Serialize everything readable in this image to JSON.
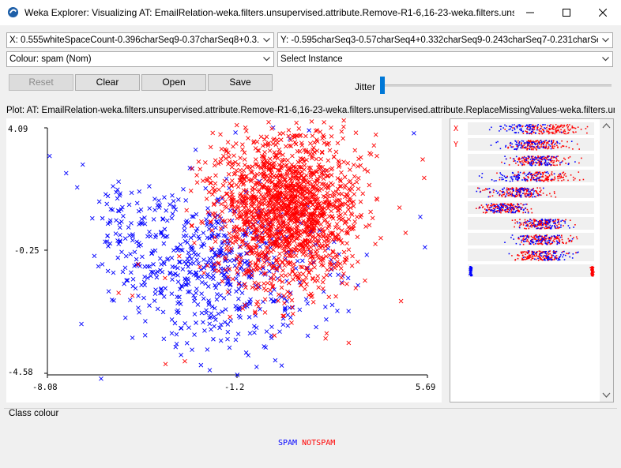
{
  "window": {
    "title": "Weka Explorer: Visualizing AT: EmailRelation-weka.filters.unsupervised.attribute.Remove-R1-6,16-23-weka.filters.uns..."
  },
  "controls": {
    "x_select": "X: 0.555whiteSpaceCount-0.396charSeq9-0.37charSeq8+0.3...",
    "y_select": "Y: -0.595charSeq3-0.57charSeq4+0.332charSeq9-0.243charSeq7-0.231charSe...",
    "colour_select": "Colour: spam (Nom)",
    "instance_select": "Select Instance",
    "reset_label": "Reset",
    "clear_label": "Clear",
    "open_label": "Open",
    "save_label": "Save",
    "jitter_label": "Jitter",
    "jitter_value": 0
  },
  "plot": {
    "label": "Plot: AT: EmailRelation-weka.filters.unsupervised.attribute.Remove-R1-6,16-23-weka.filters.unsupervised.attribute.ReplaceMissingValues-weka.filters.unsu...",
    "y_ticks": [
      "4.09",
      "-0.25",
      "-4.58"
    ],
    "x_ticks": [
      "-8.08",
      "-1.2",
      "5.69"
    ]
  },
  "chart_data": {
    "type": "scatter",
    "xlim": [
      -8.08,
      5.69
    ],
    "ylim": [
      -4.58,
      4.09
    ],
    "marker": "x",
    "series": [
      {
        "name": "SPAM",
        "color": "#0000ff",
        "center": [
          -1.6,
          -0.9
        ],
        "spread": [
          2.0,
          1.5
        ],
        "n": 650,
        "outliers": [
          [
            -8.0,
            3.1
          ],
          [
            -7.4,
            2.5
          ],
          [
            -6.8,
            2.8
          ],
          [
            -6.2,
            1.5
          ],
          [
            -7.0,
            2.0
          ],
          [
            -5.5,
            2.2
          ],
          [
            -1.2,
            -4.58
          ],
          [
            -0.5,
            -4.3
          ],
          [
            1.4,
            4.0
          ],
          [
            5.6,
            -0.1
          ],
          [
            5.2,
            3.9
          ],
          [
            0.1,
            4.1
          ]
        ]
      },
      {
        "name": "NOTSPAM",
        "color": "#ff0000",
        "center": [
          0.6,
          1.2
        ],
        "spread": [
          1.3,
          1.4
        ],
        "n": 1700,
        "outliers": [
          [
            -5.5,
            -1.7
          ],
          [
            -5.0,
            -1.8
          ],
          [
            -4.8,
            -0.7
          ],
          [
            3.6,
            3.2
          ],
          [
            3.2,
            3.0
          ],
          [
            -2.6,
            2.9
          ],
          [
            -2.3,
            2.3
          ],
          [
            -3.8,
            -4.2
          ],
          [
            -3.1,
            -4.1
          ],
          [
            2.0,
            -3.3
          ]
        ]
      }
    ]
  },
  "attribute_panel": {
    "x_marker": "X",
    "y_marker": "Y",
    "rows": [
      {
        "spam_center": 0.45,
        "notspam_center": 0.65,
        "width": 0.28
      },
      {
        "spam_center": 0.5,
        "notspam_center": 0.56,
        "width": 0.26
      },
      {
        "spam_center": 0.55,
        "notspam_center": 0.55,
        "width": 0.24
      },
      {
        "spam_center": 0.4,
        "notspam_center": 0.58,
        "width": 0.26
      },
      {
        "spam_center": 0.35,
        "notspam_center": 0.4,
        "width": 0.28
      },
      {
        "spam_center": 0.3,
        "notspam_center": 0.28,
        "width": 0.2
      },
      {
        "spam_center": 0.62,
        "notspam_center": 0.58,
        "width": 0.22
      },
      {
        "spam_center": 0.55,
        "notspam_center": 0.6,
        "width": 0.24
      },
      {
        "spam_center": 0.62,
        "notspam_center": 0.55,
        "width": 0.22
      },
      {
        "spam_center": 0.02,
        "notspam_center": 0.98,
        "width": 0.01
      }
    ]
  },
  "class_colour": {
    "label": "Class colour",
    "classes": [
      {
        "name": "SPAM",
        "color": "#0000ff"
      },
      {
        "name": "NOTSPAM",
        "color": "#ff0000"
      }
    ]
  }
}
